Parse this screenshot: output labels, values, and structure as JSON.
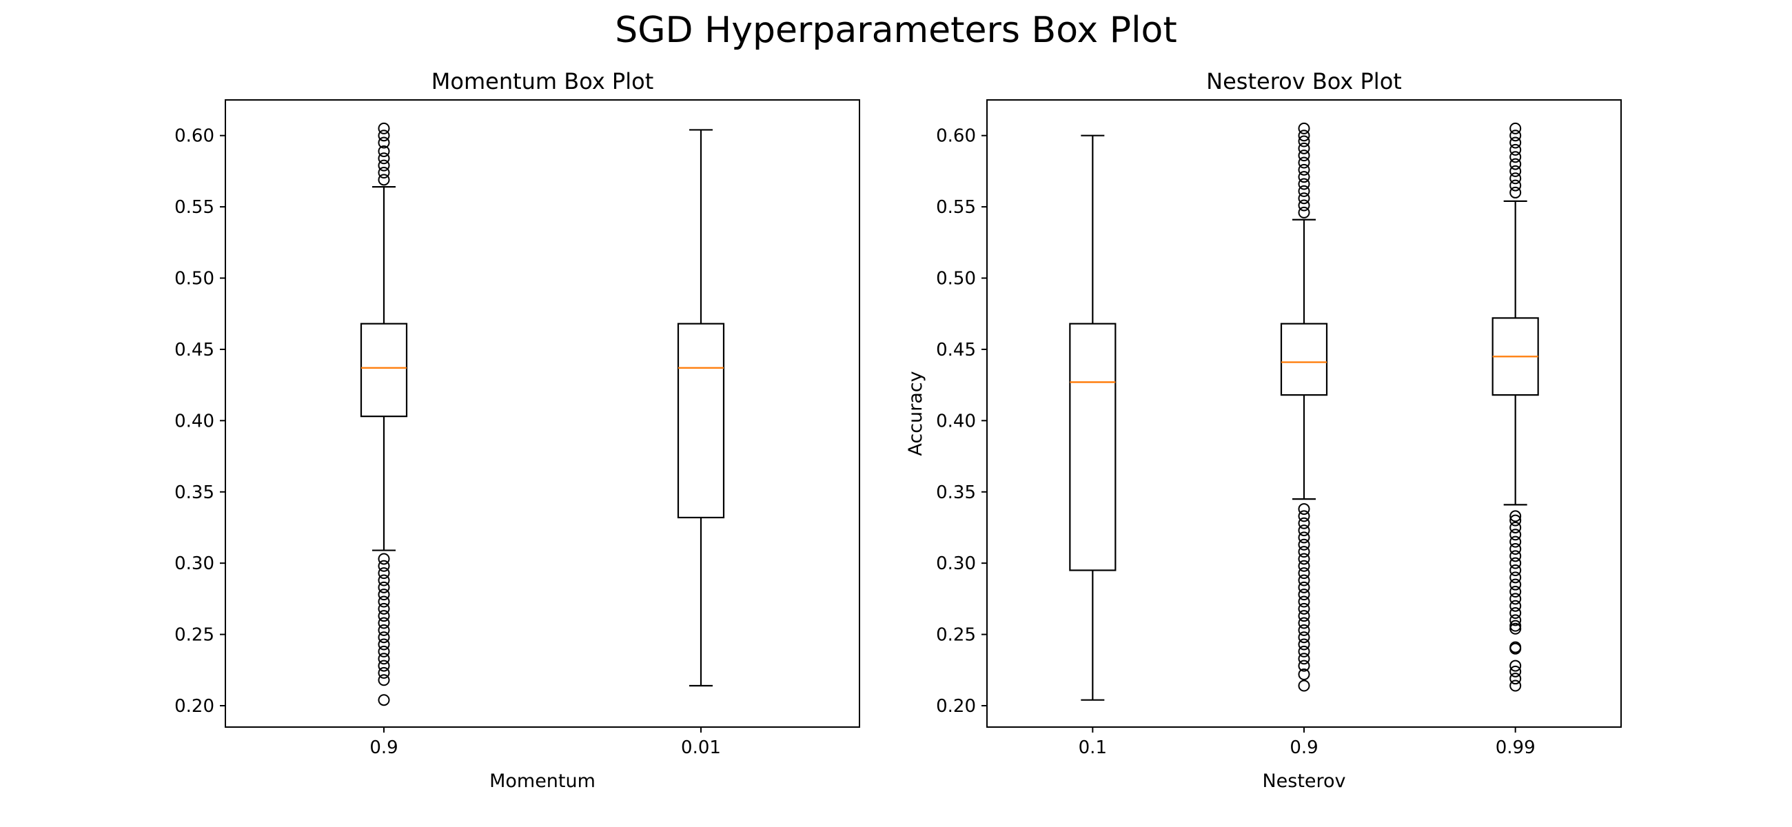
{
  "figure": {
    "title": "SGD Hyperparameters Box Plot"
  },
  "colors": {
    "median": "#ff7f0e",
    "box": "#000000",
    "background": "#ffffff"
  },
  "chart_data": [
    {
      "type": "box",
      "title": "Momentum Box Plot",
      "xlabel": "Momentum",
      "ylabel": "",
      "ylim": [
        0.185,
        0.625
      ],
      "yticks": [
        0.2,
        0.25,
        0.3,
        0.35,
        0.4,
        0.45,
        0.5,
        0.55,
        0.6
      ],
      "ytick_labels": [
        "0.20",
        "0.25",
        "0.30",
        "0.35",
        "0.40",
        "0.45",
        "0.50",
        "0.55",
        "0.60"
      ],
      "grid": false,
      "categories": [
        "0.9",
        "0.01"
      ],
      "boxes": [
        {
          "category": "0.9",
          "whisker_low": 0.309,
          "q1": 0.403,
          "median": 0.437,
          "q3": 0.468,
          "whisker_high": 0.564,
          "outliers": [
            0.204,
            0.218,
            0.223,
            0.228,
            0.233,
            0.238,
            0.243,
            0.248,
            0.253,
            0.258,
            0.263,
            0.268,
            0.273,
            0.278,
            0.283,
            0.288,
            0.293,
            0.298,
            0.303,
            0.569,
            0.574,
            0.579,
            0.584,
            0.589,
            0.595,
            0.6,
            0.605
          ]
        },
        {
          "category": "0.01",
          "whisker_low": 0.214,
          "q1": 0.332,
          "median": 0.437,
          "q3": 0.468,
          "whisker_high": 0.604,
          "outliers": []
        }
      ]
    },
    {
      "type": "box",
      "title": "Nesterov Box Plot",
      "xlabel": "Nesterov",
      "ylabel": "Accuracy",
      "ylim": [
        0.185,
        0.625
      ],
      "yticks": [
        0.2,
        0.25,
        0.3,
        0.35,
        0.4,
        0.45,
        0.5,
        0.55,
        0.6
      ],
      "ytick_labels": [
        "0.20",
        "0.25",
        "0.30",
        "0.35",
        "0.40",
        "0.45",
        "0.50",
        "0.55",
        "0.60"
      ],
      "grid": false,
      "categories": [
        "0.1",
        "0.9",
        "0.99"
      ],
      "boxes": [
        {
          "category": "0.1",
          "whisker_low": 0.204,
          "q1": 0.295,
          "median": 0.427,
          "q3": 0.468,
          "whisker_high": 0.6,
          "outliers": []
        },
        {
          "category": "0.9",
          "whisker_low": 0.345,
          "q1": 0.418,
          "median": 0.441,
          "q3": 0.468,
          "whisker_high": 0.541,
          "outliers": [
            0.214,
            0.222,
            0.228,
            0.233,
            0.238,
            0.243,
            0.248,
            0.253,
            0.258,
            0.263,
            0.268,
            0.273,
            0.278,
            0.283,
            0.288,
            0.293,
            0.298,
            0.303,
            0.308,
            0.313,
            0.318,
            0.323,
            0.328,
            0.333,
            0.338,
            0.546,
            0.551,
            0.556,
            0.561,
            0.566,
            0.571,
            0.576,
            0.581,
            0.586,
            0.591,
            0.596,
            0.6,
            0.605
          ]
        },
        {
          "category": "0.99",
          "whisker_low": 0.341,
          "q1": 0.418,
          "median": 0.445,
          "q3": 0.472,
          "whisker_high": 0.554,
          "outliers": [
            0.214,
            0.219,
            0.224,
            0.228,
            0.24,
            0.241,
            0.254,
            0.256,
            0.26,
            0.265,
            0.27,
            0.275,
            0.28,
            0.285,
            0.29,
            0.295,
            0.3,
            0.305,
            0.31,
            0.315,
            0.32,
            0.325,
            0.33,
            0.333,
            0.56,
            0.565,
            0.57,
            0.575,
            0.58,
            0.585,
            0.59,
            0.595,
            0.6,
            0.605
          ]
        }
      ]
    }
  ]
}
